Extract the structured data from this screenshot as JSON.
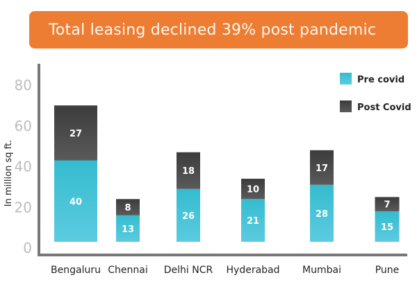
{
  "chart_data": {
    "type": "bar",
    "stacked": true,
    "title": "Total leasing declined 39% post pandemic",
    "xlabel": "",
    "ylabel": "In million sq ft.",
    "ylim": [
      0,
      80
    ],
    "yticks": [
      "0",
      "20",
      "40",
      "60",
      "80"
    ],
    "categories": [
      "Bengaluru",
      "Chennai",
      "Delhi NCR",
      "Hyderabad",
      "Mumbai",
      "Pune"
    ],
    "series": [
      {
        "name": "Pre covid",
        "color": "#3fc1d6",
        "values": [
          40,
          13,
          26,
          21,
          28,
          15
        ]
      },
      {
        "name": "Post Covid",
        "color": "#444444",
        "values": [
          27,
          8,
          18,
          10,
          17,
          7
        ]
      }
    ],
    "legend_position": "top-right",
    "grid": false
  }
}
